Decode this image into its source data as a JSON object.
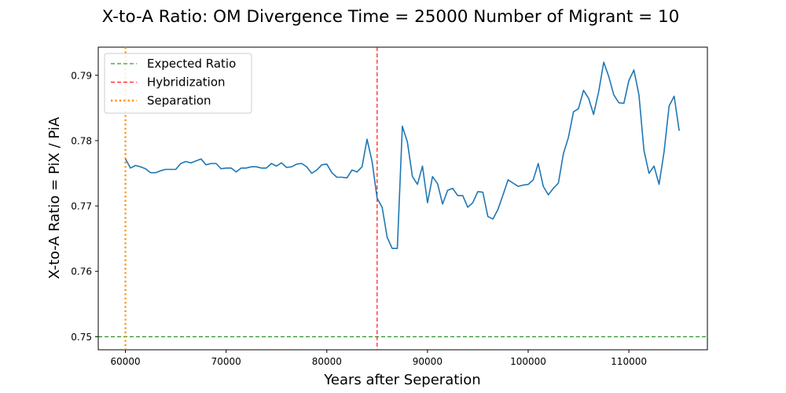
{
  "chart_data": {
    "type": "line",
    "title": "X-to-A Ratio: OM Divergence Time = 25000  Number of Migrant = 10",
    "xlabel": "Years after Seperation",
    "ylabel": "X-to-A Ratio = PiX / PiA",
    "xlim": [
      57300,
      117800
    ],
    "ylim": [
      0.748,
      0.7943
    ],
    "xticks": [
      60000,
      70000,
      80000,
      90000,
      100000,
      110000
    ],
    "yticks": [
      0.75,
      0.76,
      0.77,
      0.78,
      0.79
    ],
    "grid": false,
    "legend_position": "top-left",
    "series": [
      {
        "kind": "data",
        "color": "#1f77b4",
        "x": [
          60000,
          60500,
          61000,
          61500,
          62000,
          62500,
          63000,
          63500,
          64000,
          64500,
          65000,
          65500,
          66000,
          66500,
          67000,
          67500,
          68000,
          68500,
          69000,
          69500,
          70000,
          70500,
          71000,
          71500,
          72000,
          72500,
          73000,
          73500,
          74000,
          74500,
          75000,
          75500,
          76000,
          76500,
          77000,
          77500,
          78000,
          78500,
          79000,
          79500,
          80000,
          80500,
          81000,
          81500,
          82000,
          82500,
          83000,
          83500,
          84000,
          84500,
          85000,
          85500,
          86000,
          86500,
          87000,
          87500,
          88000,
          88500,
          89000,
          89500,
          90000,
          90500,
          91000,
          91500,
          92000,
          92500,
          93000,
          93500,
          94000,
          94500,
          95000,
          95500,
          96000,
          96500,
          97000,
          97500,
          98000,
          98500,
          99000,
          99500,
          100000,
          100500,
          101000,
          101500,
          102000,
          102500,
          103000,
          103500,
          104000,
          104500,
          105000,
          105500,
          106000,
          106500,
          107000,
          107500,
          108000,
          108500,
          109000,
          109500,
          110000,
          110500,
          111000,
          111500,
          112000,
          112500,
          113000,
          113500,
          114000,
          114500,
          115000
        ],
        "y": [
          0.7772,
          0.7758,
          0.7762,
          0.776,
          0.7757,
          0.7751,
          0.7751,
          0.7754,
          0.7756,
          0.7756,
          0.7756,
          0.7765,
          0.7768,
          0.7766,
          0.7769,
          0.7772,
          0.7763,
          0.7765,
          0.7765,
          0.7757,
          0.7758,
          0.7758,
          0.7752,
          0.7758,
          0.7758,
          0.776,
          0.776,
          0.7758,
          0.7758,
          0.7765,
          0.7761,
          0.7766,
          0.7759,
          0.776,
          0.7764,
          0.7765,
          0.776,
          0.775,
          0.7755,
          0.7763,
          0.7764,
          0.7751,
          0.7744,
          0.7744,
          0.7743,
          0.7755,
          0.7752,
          0.776,
          0.7802,
          0.7768,
          0.7712,
          0.7698,
          0.7652,
          0.7635,
          0.7635,
          0.7822,
          0.7798,
          0.7745,
          0.7733,
          0.7761,
          0.7705,
          0.7745,
          0.7734,
          0.7703,
          0.7724,
          0.7727,
          0.7716,
          0.7716,
          0.7698,
          0.7705,
          0.7722,
          0.7721,
          0.7684,
          0.768,
          0.7695,
          0.7717,
          0.774,
          0.7735,
          0.773,
          0.7732,
          0.7733,
          0.774,
          0.7765,
          0.773,
          0.7717,
          0.7727,
          0.7735,
          0.778,
          0.7805,
          0.7844,
          0.7849,
          0.7877,
          0.7865,
          0.784,
          0.7875,
          0.792,
          0.7898,
          0.787,
          0.7858,
          0.7857,
          0.7892,
          0.7908,
          0.787,
          0.7785,
          0.775,
          0.7761,
          0.7733,
          0.7783,
          0.7853,
          0.7868,
          0.7815
        ]
      },
      {
        "kind": "hline",
        "name": "Expected Ratio",
        "value": 0.75,
        "color": "#008000",
        "dash": "dashed"
      },
      {
        "kind": "vline",
        "name": "Hybridization",
        "value": 85000,
        "color": "#ff0000",
        "dash": "dashed"
      },
      {
        "kind": "vline",
        "name": "Separation",
        "value": 60000,
        "color": "#ff8c00",
        "dash": "dotted"
      }
    ]
  }
}
